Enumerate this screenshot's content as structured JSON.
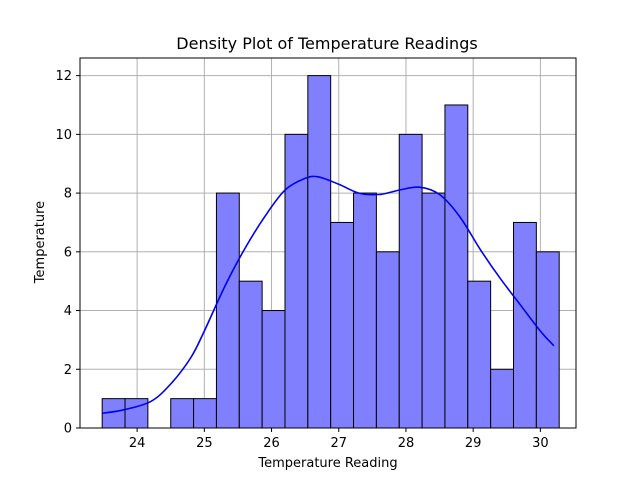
{
  "chart_data": {
    "type": "bar",
    "title": "Density Plot of Temperature Readings",
    "xlabel": "Temperature Reading",
    "ylabel": "Temperature",
    "xlim": [
      23.15,
      30.53
    ],
    "ylim": [
      0,
      12.6
    ],
    "xticks": [
      24,
      25,
      26,
      27,
      28,
      29,
      30
    ],
    "yticks": [
      0,
      2,
      4,
      6,
      8,
      10,
      12
    ],
    "grid": true,
    "bins": [
      {
        "x0": 23.48,
        "x1": 23.82,
        "count": 1
      },
      {
        "x0": 23.82,
        "x1": 24.16,
        "count": 1
      },
      {
        "x0": 24.16,
        "x1": 24.5,
        "count": 0
      },
      {
        "x0": 24.5,
        "x1": 24.84,
        "count": 1
      },
      {
        "x0": 24.84,
        "x1": 25.18,
        "count": 1
      },
      {
        "x0": 25.18,
        "x1": 25.52,
        "count": 8
      },
      {
        "x0": 25.52,
        "x1": 25.86,
        "count": 5
      },
      {
        "x0": 25.86,
        "x1": 26.2,
        "count": 4
      },
      {
        "x0": 26.2,
        "x1": 26.54,
        "count": 10
      },
      {
        "x0": 26.54,
        "x1": 26.88,
        "count": 12
      },
      {
        "x0": 26.88,
        "x1": 27.22,
        "count": 7
      },
      {
        "x0": 27.22,
        "x1": 27.56,
        "count": 8
      },
      {
        "x0": 27.56,
        "x1": 27.9,
        "count": 6
      },
      {
        "x0": 27.9,
        "x1": 28.24,
        "count": 10
      },
      {
        "x0": 28.24,
        "x1": 28.58,
        "count": 8
      },
      {
        "x0": 28.58,
        "x1": 28.92,
        "count": 11
      },
      {
        "x0": 28.92,
        "x1": 29.26,
        "count": 5
      },
      {
        "x0": 29.26,
        "x1": 29.6,
        "count": 2
      },
      {
        "x0": 29.6,
        "x1": 29.94,
        "count": 7
      },
      {
        "x0": 29.94,
        "x1": 30.28,
        "count": 6
      }
    ],
    "kde": [
      [
        23.48,
        0.5
      ],
      [
        23.8,
        0.62
      ],
      [
        24.2,
        0.9
      ],
      [
        24.5,
        1.5
      ],
      [
        24.8,
        2.4
      ],
      [
        25.0,
        3.3
      ],
      [
        25.3,
        4.8
      ],
      [
        25.6,
        6.1
      ],
      [
        25.9,
        7.2
      ],
      [
        26.2,
        8.1
      ],
      [
        26.5,
        8.5
      ],
      [
        26.7,
        8.55
      ],
      [
        27.0,
        8.3
      ],
      [
        27.3,
        8.0
      ],
      [
        27.6,
        7.95
      ],
      [
        27.9,
        8.1
      ],
      [
        28.2,
        8.2
      ],
      [
        28.5,
        7.95
      ],
      [
        28.8,
        7.2
      ],
      [
        29.1,
        6.1
      ],
      [
        29.4,
        5.1
      ],
      [
        29.7,
        4.2
      ],
      [
        30.0,
        3.3
      ],
      [
        30.2,
        2.8
      ]
    ],
    "colors": {
      "bar_fill": "#8080ff",
      "bar_edge": "#000000",
      "kde_line": "#0000ee",
      "grid": "#b0b0b0"
    }
  }
}
